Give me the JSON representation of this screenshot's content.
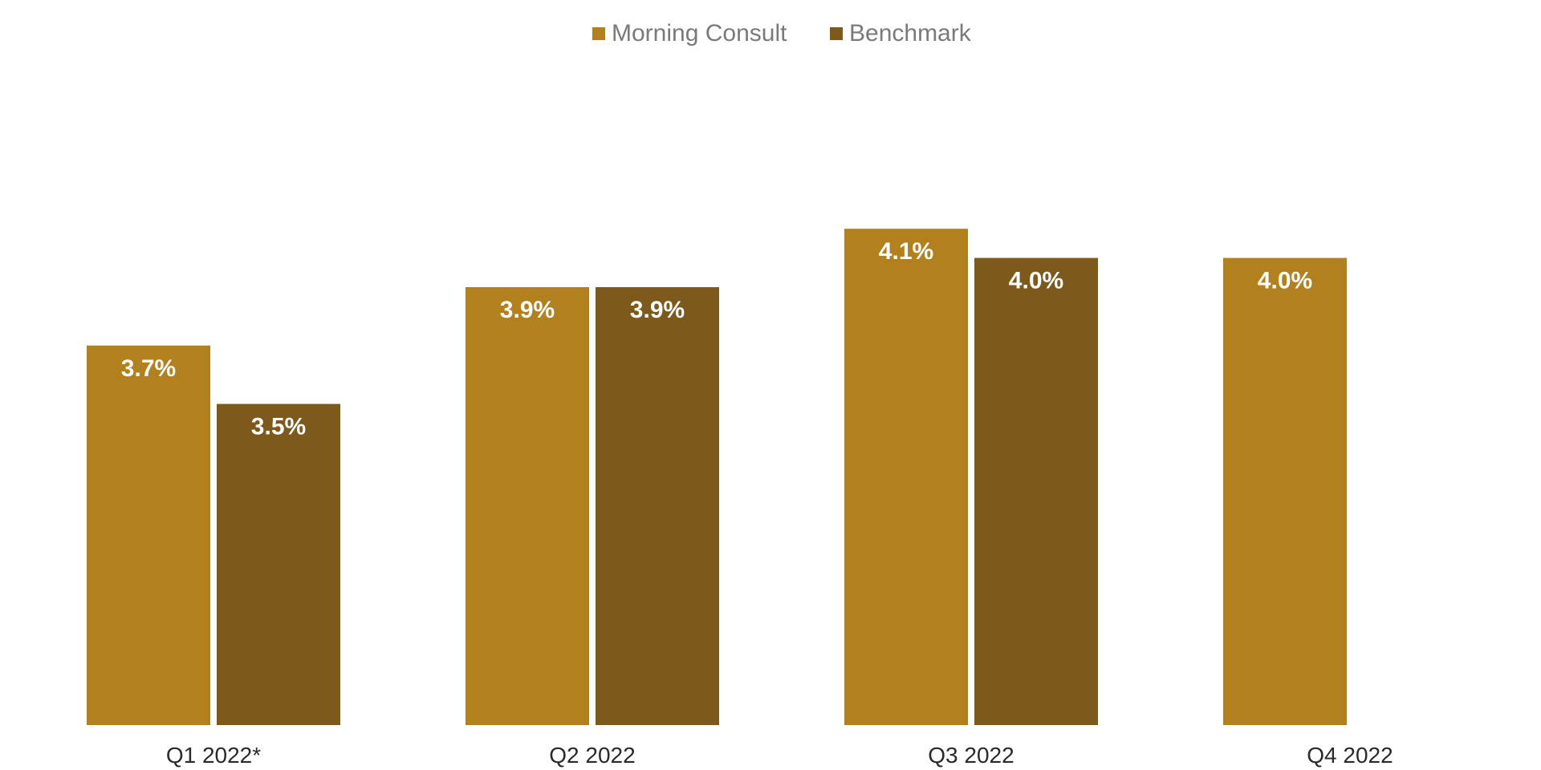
{
  "chart_data": {
    "type": "bar",
    "categories": [
      "Q1 2022*",
      "Q2 2022",
      "Q3 2022",
      "Q4 2022"
    ],
    "series": [
      {
        "name": "Morning Consult",
        "color": "#b3801e",
        "values": [
          3.7,
          3.9,
          4.1,
          4.0
        ],
        "labels": [
          "3.7%",
          "3.9%",
          "4.1%",
          "4.0%"
        ]
      },
      {
        "name": "Benchmark",
        "color": "#7d591b",
        "values": [
          3.5,
          3.9,
          4.0,
          null
        ],
        "labels": [
          "3.5%",
          "3.9%",
          "4.0%",
          null
        ]
      }
    ],
    "ylim": [
      2.4,
      4.4
    ],
    "grid": false,
    "legend_position": "top-center",
    "xlabel": "",
    "ylabel": ""
  }
}
